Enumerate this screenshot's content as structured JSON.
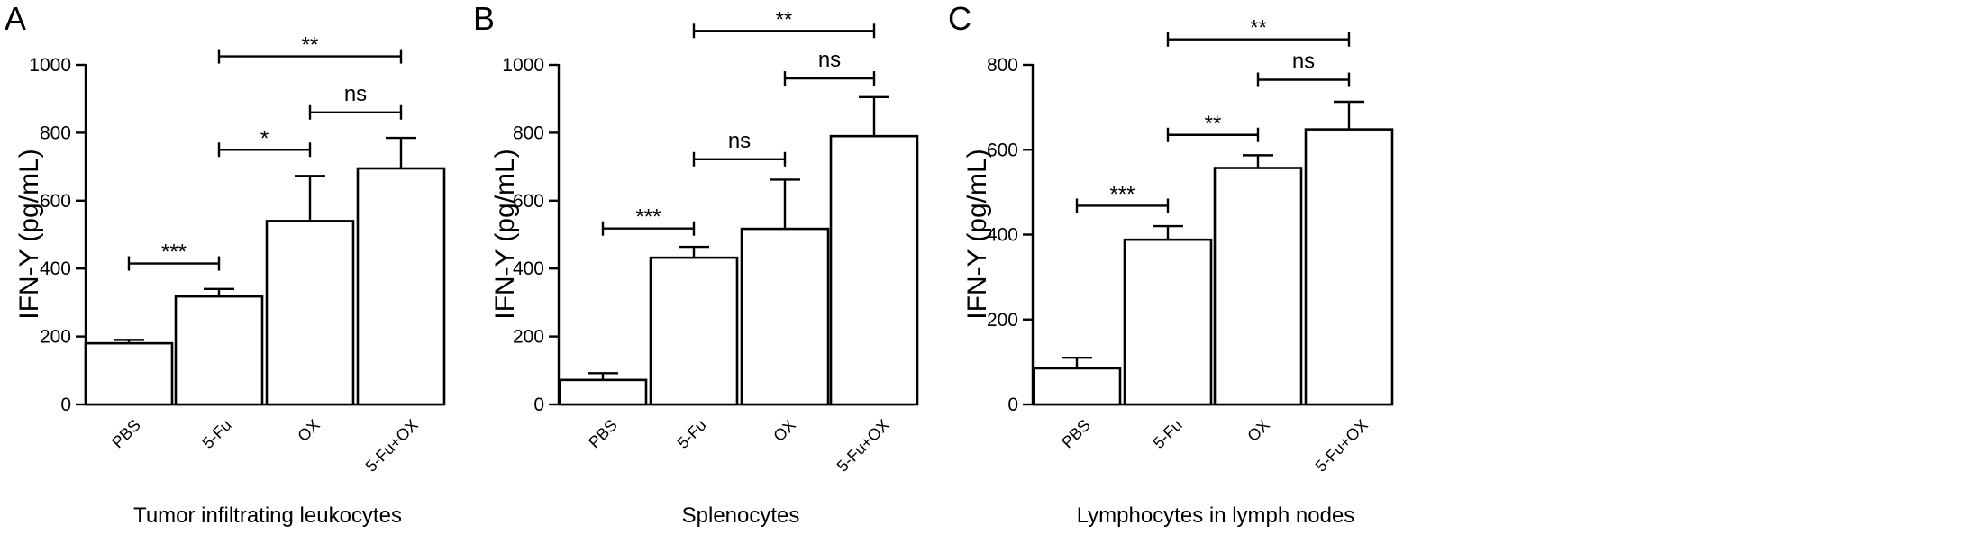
{
  "chart_data": [
    {
      "type": "bar",
      "panel_letter": "A",
      "categories": [
        "PBS",
        "5-Fu",
        "OX",
        "5-Fu+OX"
      ],
      "values": [
        180,
        318,
        540,
        695
      ],
      "errors": [
        10,
        22,
        133,
        90
      ],
      "ylabel": "IFN-Y (pg/mL)",
      "xlabel": "Tumor infiltrating leukocytes",
      "ylim": [
        0,
        1000
      ],
      "yticks": [
        0,
        200,
        400,
        600,
        800,
        1000
      ],
      "ytick_labels": [
        "0",
        "200",
        "400",
        "600",
        "800",
        "1000"
      ],
      "comparisons": [
        {
          "from": 0,
          "to": 1,
          "y": 415,
          "label": "***"
        },
        {
          "from": 1,
          "to": 2,
          "y": 750,
          "label": "*"
        },
        {
          "from": 2,
          "to": 3,
          "y": 860,
          "label": "ns"
        },
        {
          "from": 1,
          "to": 3,
          "y": 1025,
          "label": "**"
        }
      ]
    },
    {
      "type": "bar",
      "panel_letter": "B",
      "categories": [
        "PBS",
        "5-Fu",
        "OX",
        "5-Fu+OX"
      ],
      "values": [
        72,
        432,
        517,
        790
      ],
      "errors": [
        20,
        32,
        145,
        115
      ],
      "ylabel": "IFN-Y (pg/mL)",
      "xlabel": "Splenocytes",
      "ylim": [
        0,
        1000
      ],
      "yticks": [
        0,
        200,
        400,
        600,
        800,
        1000
      ],
      "ytick_labels": [
        "0",
        "200",
        "400",
        "600",
        "800",
        "1000"
      ],
      "comparisons": [
        {
          "from": 0,
          "to": 1,
          "y": 518,
          "label": "***"
        },
        {
          "from": 1,
          "to": 2,
          "y": 722,
          "label": "ns"
        },
        {
          "from": 2,
          "to": 3,
          "y": 960,
          "label": "ns"
        },
        {
          "from": 1,
          "to": 3,
          "y": 1100,
          "label": "**"
        }
      ]
    },
    {
      "type": "bar",
      "panel_letter": "C",
      "categories": [
        "PBS",
        "5-Fu",
        "OX",
        "5-Fu+OX"
      ],
      "values": [
        85,
        388,
        557,
        648
      ],
      "errors": [
        25,
        32,
        30,
        65
      ],
      "ylabel": "IFN-Y (pg/mL)",
      "xlabel": "Lymphocytes in lymph nodes",
      "ylim": [
        0,
        800
      ],
      "yticks": [
        0,
        200,
        400,
        600,
        800
      ],
      "ytick_labels": [
        "0",
        "200",
        "400",
        "600",
        "800"
      ],
      "comparisons": [
        {
          "from": 0,
          "to": 1,
          "y": 468,
          "label": "***"
        },
        {
          "from": 1,
          "to": 2,
          "y": 635,
          "label": "**"
        },
        {
          "from": 2,
          "to": 3,
          "y": 765,
          "label": "ns"
        },
        {
          "from": 1,
          "to": 3,
          "y": 860,
          "label": "**"
        }
      ]
    }
  ]
}
